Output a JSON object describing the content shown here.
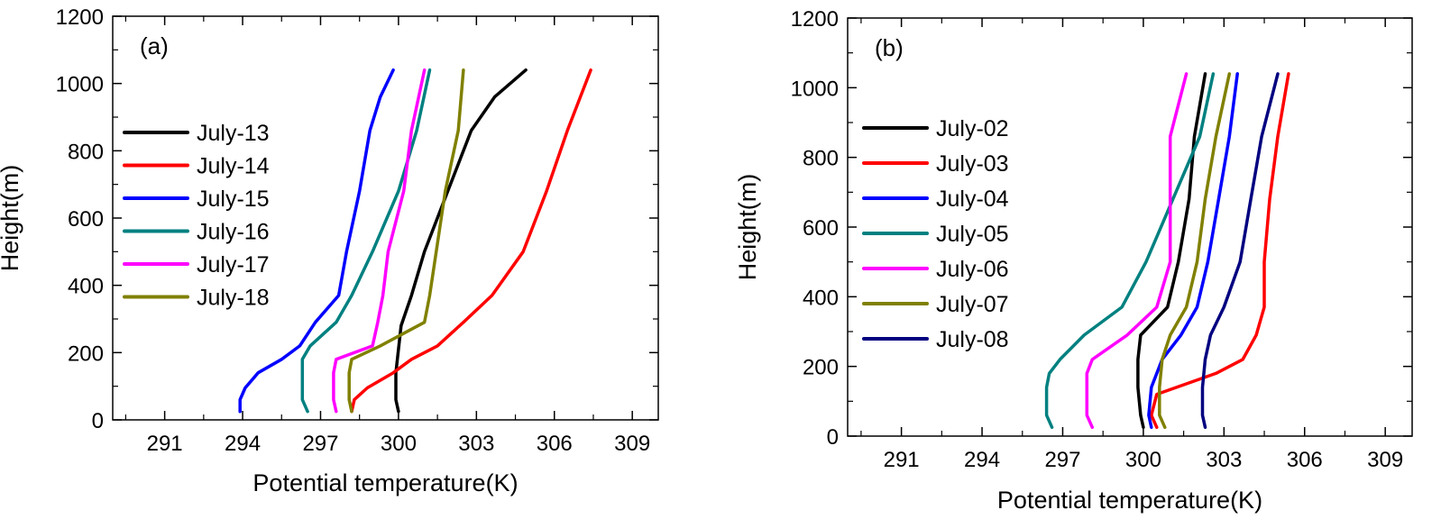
{
  "chart_data": [
    {
      "type": "line",
      "panel_label": "(a)",
      "xlabel": "Potential temperature(K)",
      "ylabel": "Height(m)",
      "xlim": [
        289,
        310
      ],
      "ylim": [
        0,
        1200
      ],
      "xticks": [
        "291",
        "294",
        "297",
        "300",
        "303",
        "306",
        "309"
      ],
      "yticks": [
        "0",
        "200",
        "400",
        "600",
        "800",
        "1000",
        "1200"
      ],
      "grid": false,
      "legend_position": "left",
      "series": [
        {
          "name": "July-13",
          "color": "#000000",
          "x": [
            300.0,
            299.9,
            299.9,
            300.1,
            300.5,
            301.0,
            301.9,
            302.8,
            303.7,
            304.9
          ],
          "y": [
            25,
            60,
            140,
            280,
            370,
            500,
            680,
            860,
            960,
            1040
          ]
        },
        {
          "name": "July-14",
          "color": "#ff0000",
          "x": [
            298.2,
            298.3,
            298.8,
            299.8,
            300.5,
            301.5,
            302.5,
            303.6,
            304.8,
            305.7,
            306.5,
            307.4
          ],
          "y": [
            25,
            60,
            95,
            140,
            180,
            220,
            290,
            370,
            500,
            680,
            860,
            1040
          ]
        },
        {
          "name": "July-15",
          "color": "#0000ff",
          "x": [
            293.9,
            293.9,
            294.1,
            294.6,
            295.5,
            296.2,
            296.8,
            297.7,
            298.0,
            298.5,
            298.9,
            299.3,
            299.8
          ],
          "y": [
            25,
            60,
            95,
            140,
            180,
            220,
            290,
            370,
            500,
            680,
            860,
            960,
            1040
          ]
        },
        {
          "name": "July-16",
          "color": "#008080",
          "x": [
            296.5,
            296.3,
            296.3,
            296.3,
            296.6,
            297.6,
            298.2,
            299.0,
            300.0,
            300.7,
            301.2
          ],
          "y": [
            25,
            60,
            140,
            180,
            220,
            290,
            370,
            500,
            680,
            860,
            1040
          ]
        },
        {
          "name": "July-17",
          "color": "#ff00ff",
          "x": [
            297.6,
            297.5,
            297.5,
            297.6,
            299.0,
            299.2,
            299.4,
            299.6,
            300.2,
            300.5,
            301.0
          ],
          "y": [
            25,
            60,
            140,
            180,
            220,
            290,
            370,
            500,
            680,
            860,
            1040
          ]
        },
        {
          "name": "July-18",
          "color": "#808000",
          "x": [
            298.2,
            298.1,
            298.1,
            298.2,
            299.3,
            301.0,
            301.2,
            301.8,
            302.3,
            302.5
          ],
          "y": [
            25,
            60,
            140,
            180,
            220,
            290,
            370,
            680,
            860,
            1040
          ]
        }
      ]
    },
    {
      "type": "line",
      "panel_label": "(b)",
      "xlabel": "Potential temperature(K)",
      "ylabel": "Height(m)",
      "xlim": [
        289,
        310
      ],
      "ylim": [
        0,
        1200
      ],
      "xticks": [
        "291",
        "294",
        "297",
        "300",
        "303",
        "306",
        "309"
      ],
      "yticks": [
        "0",
        "200",
        "400",
        "600",
        "800",
        "1000",
        "1200"
      ],
      "grid": false,
      "legend_position": "left",
      "series": [
        {
          "name": "July-02",
          "color": "#000000",
          "x": [
            300.0,
            299.9,
            299.8,
            299.8,
            299.8,
            299.9,
            300.9,
            301.3,
            301.7,
            301.9,
            302.3
          ],
          "y": [
            25,
            60,
            140,
            180,
            220,
            290,
            370,
            500,
            680,
            860,
            1040
          ]
        },
        {
          "name": "July-03",
          "color": "#ff0000",
          "x": [
            300.5,
            300.3,
            300.5,
            302.7,
            303.7,
            304.2,
            304.5,
            304.5,
            304.7,
            305.0,
            305.4
          ],
          "y": [
            25,
            60,
            120,
            180,
            220,
            290,
            370,
            500,
            680,
            860,
            1040
          ]
        },
        {
          "name": "July-04",
          "color": "#0000ff",
          "x": [
            300.3,
            300.2,
            300.3,
            300.7,
            301.4,
            302.0,
            302.4,
            302.8,
            303.2,
            303.5
          ],
          "y": [
            25,
            60,
            140,
            220,
            290,
            370,
            500,
            680,
            860,
            1040
          ]
        },
        {
          "name": "July-05",
          "color": "#008080",
          "x": [
            296.6,
            296.4,
            296.4,
            296.5,
            296.9,
            297.8,
            299.2,
            300.1,
            301.1,
            302.1,
            302.6
          ],
          "y": [
            25,
            60,
            140,
            180,
            220,
            290,
            370,
            500,
            680,
            860,
            1040
          ]
        },
        {
          "name": "July-06",
          "color": "#ff00ff",
          "x": [
            298.1,
            297.9,
            297.9,
            297.9,
            298.1,
            299.4,
            300.5,
            301.0,
            301.0,
            301.0,
            301.6
          ],
          "y": [
            25,
            60,
            140,
            180,
            220,
            290,
            370,
            500,
            680,
            860,
            1040
          ]
        },
        {
          "name": "July-07",
          "color": "#808000",
          "x": [
            300.8,
            300.6,
            300.6,
            300.7,
            301.0,
            301.6,
            302.0,
            302.3,
            302.7,
            303.2
          ],
          "y": [
            25,
            60,
            140,
            220,
            290,
            370,
            500,
            680,
            860,
            1040
          ]
        },
        {
          "name": "July-08",
          "color": "#000080",
          "x": [
            302.3,
            302.2,
            302.2,
            302.3,
            302.5,
            303.0,
            303.6,
            304.0,
            304.4,
            305.0
          ],
          "y": [
            25,
            60,
            140,
            220,
            290,
            370,
            500,
            680,
            860,
            1040
          ]
        }
      ]
    }
  ]
}
